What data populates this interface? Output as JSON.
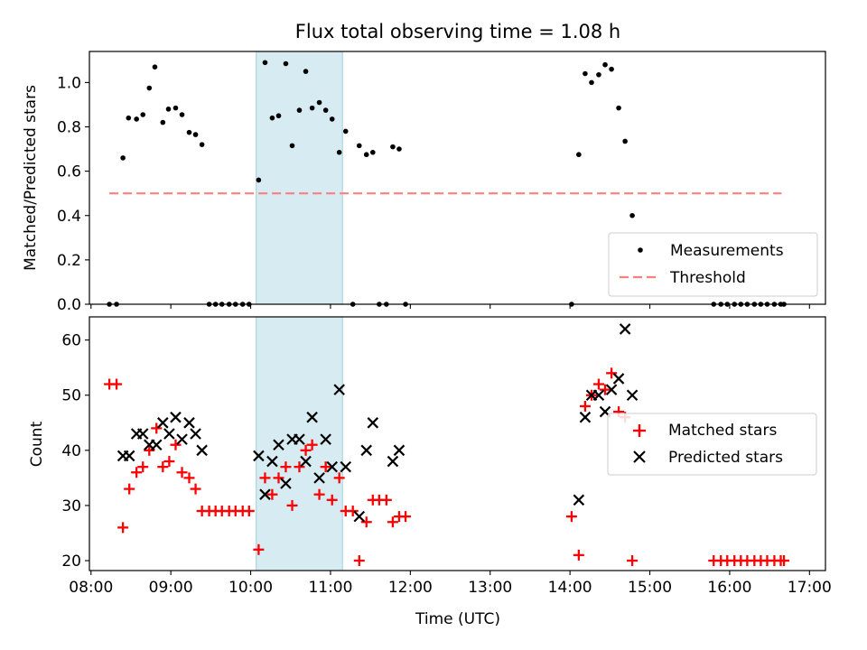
{
  "chart_data": [
    {
      "type": "scatter",
      "title": "Flux total observing time = 1.08 h",
      "xlabel": "",
      "ylabel": "Matched/Predicted stars",
      "ylim": [
        0,
        1.14
      ],
      "yticks": [
        0.0,
        0.2,
        0.4,
        0.6,
        0.8,
        1.0
      ],
      "ytick_labels": [
        "0.0",
        "0.2",
        "0.4",
        "0.6",
        "0.8",
        "1.0"
      ],
      "xlim_hours": [
        7.98,
        17.2
      ],
      "highlight_span_hours": [
        10.07,
        11.15
      ],
      "highlight_color": "#add8e6",
      "legend_position": "lower right",
      "threshold": {
        "name": "Threshold",
        "value": 0.5,
        "x_hours": [
          8.23,
          16.65
        ],
        "color": "#ff7f7f",
        "style": "dashed"
      },
      "series": [
        {
          "name": "Measurements",
          "color": "#000000",
          "marker": "dot",
          "points": [
            [
              8.23,
              0
            ],
            [
              8.32,
              0
            ],
            [
              8.4,
              0.66
            ],
            [
              8.47,
              0.84
            ],
            [
              8.57,
              0.835
            ],
            [
              8.65,
              0.855
            ],
            [
              8.73,
              0.975
            ],
            [
              8.8,
              1.07
            ],
            [
              8.9,
              0.82
            ],
            [
              8.97,
              0.88
            ],
            [
              9.06,
              0.885
            ],
            [
              9.14,
              0.855
            ],
            [
              9.23,
              0.775
            ],
            [
              9.31,
              0.765
            ],
            [
              9.39,
              0.72
            ],
            [
              9.48,
              0
            ],
            [
              9.56,
              0
            ],
            [
              9.64,
              0
            ],
            [
              9.73,
              0
            ],
            [
              9.81,
              0
            ],
            [
              9.9,
              0
            ],
            [
              9.98,
              0
            ],
            [
              10.1,
              0.56
            ],
            [
              10.18,
              1.09
            ],
            [
              10.27,
              0.84
            ],
            [
              10.35,
              0.85
            ],
            [
              10.44,
              1.085
            ],
            [
              10.52,
              0.715
            ],
            [
              10.61,
              0.875
            ],
            [
              10.69,
              1.05
            ],
            [
              10.77,
              0.885
            ],
            [
              10.86,
              0.91
            ],
            [
              10.94,
              0.875
            ],
            [
              11.02,
              0.835
            ],
            [
              11.11,
              0.685
            ],
            [
              11.19,
              0.78
            ],
            [
              11.28,
              0
            ],
            [
              11.36,
              0.715
            ],
            [
              11.45,
              0.675
            ],
            [
              11.53,
              0.685
            ],
            [
              11.61,
              0
            ],
            [
              11.7,
              0
            ],
            [
              11.78,
              0.71
            ],
            [
              11.86,
              0.7
            ],
            [
              11.94,
              0
            ],
            [
              14.02,
              0
            ],
            [
              14.11,
              0.675
            ],
            [
              14.19,
              1.04
            ],
            [
              14.27,
              1.0
            ],
            [
              14.36,
              1.035
            ],
            [
              14.44,
              1.08
            ],
            [
              14.52,
              1.06
            ],
            [
              14.61,
              0.885
            ],
            [
              14.69,
              0.735
            ],
            [
              14.78,
              0.4
            ],
            [
              15.8,
              0
            ],
            [
              15.89,
              0
            ],
            [
              15.97,
              0
            ],
            [
              16.06,
              0
            ],
            [
              16.14,
              0
            ],
            [
              16.22,
              0
            ],
            [
              16.31,
              0
            ],
            [
              16.39,
              0
            ],
            [
              16.47,
              0
            ],
            [
              16.56,
              0
            ],
            [
              16.64,
              0
            ],
            [
              16.68,
              0
            ]
          ]
        }
      ]
    },
    {
      "type": "scatter",
      "title": "",
      "xlabel": "Time (UTC)",
      "ylabel": "Count",
      "ylim": [
        18.2,
        64.2
      ],
      "yticks": [
        20,
        30,
        40,
        50,
        60
      ],
      "ytick_labels": [
        "20",
        "30",
        "40",
        "50",
        "60"
      ],
      "xlim_hours": [
        7.98,
        17.2
      ],
      "xticks_hours": [
        8,
        9,
        10,
        11,
        12,
        13,
        14,
        15,
        16,
        17
      ],
      "xtick_labels": [
        "08:00",
        "09:00",
        "10:00",
        "11:00",
        "12:00",
        "13:00",
        "14:00",
        "15:00",
        "16:00",
        "17:00"
      ],
      "highlight_span_hours": [
        10.07,
        11.15
      ],
      "highlight_color": "#add8e6",
      "legend_position": "center right",
      "series": [
        {
          "name": "Matched stars",
          "color": "#ff0000",
          "marker": "plus",
          "points": [
            [
              8.23,
              52
            ],
            [
              8.32,
              52
            ],
            [
              8.4,
              26
            ],
            [
              8.48,
              33
            ],
            [
              8.57,
              36
            ],
            [
              8.65,
              37
            ],
            [
              8.73,
              40
            ],
            [
              8.82,
              44
            ],
            [
              8.9,
              37
            ],
            [
              8.98,
              38
            ],
            [
              9.06,
              41
            ],
            [
              9.14,
              36
            ],
            [
              9.23,
              35
            ],
            [
              9.31,
              33
            ],
            [
              9.39,
              29
            ],
            [
              9.48,
              29
            ],
            [
              9.56,
              29
            ],
            [
              9.64,
              29
            ],
            [
              9.73,
              29
            ],
            [
              9.81,
              29
            ],
            [
              9.9,
              29
            ],
            [
              9.98,
              29
            ],
            [
              10.1,
              22
            ],
            [
              10.18,
              35
            ],
            [
              10.27,
              32
            ],
            [
              10.35,
              35
            ],
            [
              10.44,
              37
            ],
            [
              10.52,
              30
            ],
            [
              10.61,
              37
            ],
            [
              10.69,
              40
            ],
            [
              10.77,
              41
            ],
            [
              10.86,
              32
            ],
            [
              10.94,
              37
            ],
            [
              11.02,
              31
            ],
            [
              11.11,
              35
            ],
            [
              11.19,
              29
            ],
            [
              11.28,
              29
            ],
            [
              11.36,
              20
            ],
            [
              11.45,
              27
            ],
            [
              11.53,
              31
            ],
            [
              11.61,
              31
            ],
            [
              11.7,
              31
            ],
            [
              11.78,
              27
            ],
            [
              11.86,
              28
            ],
            [
              11.94,
              28
            ],
            [
              14.02,
              28
            ],
            [
              14.11,
              21
            ],
            [
              14.19,
              48
            ],
            [
              14.27,
              50
            ],
            [
              14.36,
              52
            ],
            [
              14.44,
              51
            ],
            [
              14.52,
              54
            ],
            [
              14.61,
              47
            ],
            [
              14.69,
              46
            ],
            [
              14.78,
              20
            ],
            [
              15.8,
              20
            ],
            [
              15.89,
              20
            ],
            [
              15.97,
              20
            ],
            [
              16.06,
              20
            ],
            [
              16.14,
              20
            ],
            [
              16.22,
              20
            ],
            [
              16.31,
              20
            ],
            [
              16.39,
              20
            ],
            [
              16.47,
              20
            ],
            [
              16.56,
              20
            ],
            [
              16.64,
              20
            ],
            [
              16.68,
              20
            ]
          ]
        },
        {
          "name": "Predicted stars",
          "color": "#000000",
          "marker": "x",
          "points": [
            [
              8.4,
              39
            ],
            [
              8.48,
              39
            ],
            [
              8.57,
              43
            ],
            [
              8.65,
              43
            ],
            [
              8.73,
              41
            ],
            [
              8.82,
              41
            ],
            [
              8.9,
              45
            ],
            [
              8.98,
              43
            ],
            [
              9.06,
              46
            ],
            [
              9.14,
              42
            ],
            [
              9.23,
              45
            ],
            [
              9.31,
              43
            ],
            [
              9.39,
              40
            ],
            [
              10.1,
              39
            ],
            [
              10.18,
              32
            ],
            [
              10.27,
              38
            ],
            [
              10.35,
              41
            ],
            [
              10.44,
              34
            ],
            [
              10.52,
              42
            ],
            [
              10.61,
              42
            ],
            [
              10.69,
              38
            ],
            [
              10.77,
              46
            ],
            [
              10.86,
              35
            ],
            [
              10.94,
              42
            ],
            [
              11.02,
              37
            ],
            [
              11.11,
              51
            ],
            [
              11.19,
              37
            ],
            [
              11.36,
              28
            ],
            [
              11.45,
              40
            ],
            [
              11.53,
              45
            ],
            [
              11.78,
              38
            ],
            [
              11.86,
              40
            ],
            [
              14.11,
              31
            ],
            [
              14.19,
              46
            ],
            [
              14.27,
              50
            ],
            [
              14.36,
              50
            ],
            [
              14.44,
              47
            ],
            [
              14.52,
              51
            ],
            [
              14.61,
              53
            ],
            [
              14.69,
              62
            ],
            [
              14.78,
              50
            ]
          ]
        }
      ]
    }
  ]
}
